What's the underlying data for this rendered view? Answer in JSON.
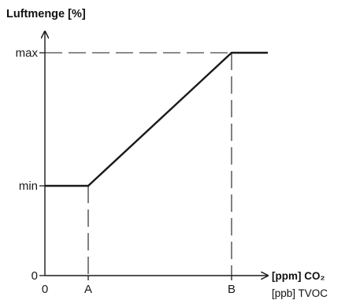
{
  "diagram": {
    "y_axis_title": "Luftmenge [%]",
    "y_labels": {
      "max": "max",
      "min": "min",
      "zero": "0"
    },
    "x_labels": {
      "zero": "0",
      "a": "A",
      "b": "B"
    },
    "x_axis_title": {
      "line1": "[ppm] CO₂",
      "line2": "[ppb] TVOC"
    },
    "colors": {
      "line": "#1a1a1a",
      "background": "#ffffff"
    }
  }
}
